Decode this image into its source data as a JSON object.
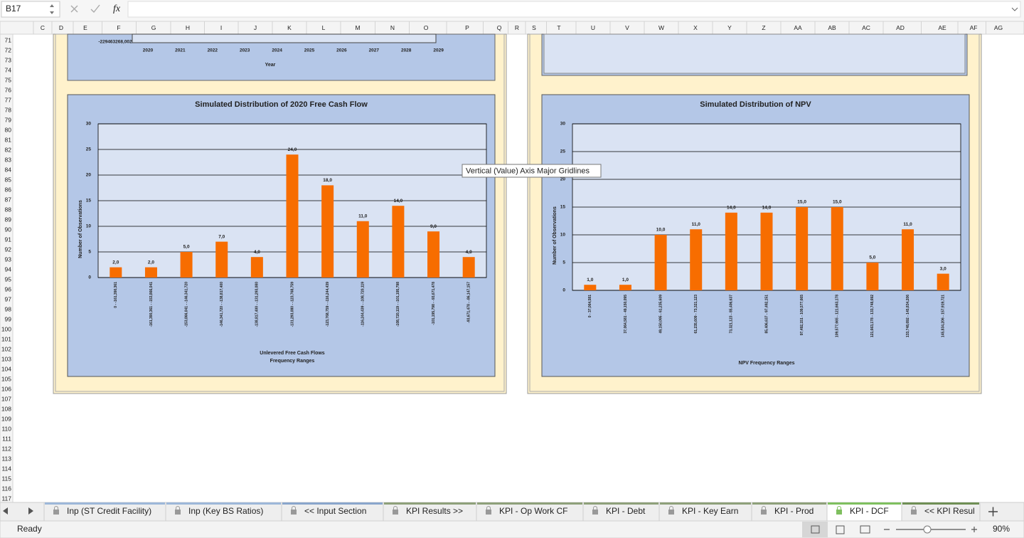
{
  "formula_bar": {
    "name_box": "B17",
    "function_button": "fx"
  },
  "column_headers": [
    "C",
    "D",
    "E",
    "F",
    "G",
    "H",
    "I",
    "J",
    "K",
    "L",
    "M",
    "N",
    "O",
    "P",
    "Q",
    "R",
    "S",
    "T",
    "U",
    "V",
    "W",
    "X",
    "Y",
    "Z",
    "AA",
    "AB",
    "AC",
    "AD",
    "AE",
    "AF",
    "AG"
  ],
  "row_numbers": [
    71,
    72,
    73,
    74,
    75,
    76,
    77,
    78,
    79,
    80,
    81,
    82,
    83,
    84,
    85,
    86,
    87,
    88,
    89,
    90,
    91,
    92,
    93,
    94,
    95,
    96,
    97,
    98,
    99,
    100,
    101,
    102,
    103,
    104,
    105,
    106,
    107,
    108,
    109,
    110,
    111,
    112,
    113,
    114,
    115,
    116,
    117
  ],
  "top_chart_fragment": {
    "axis_value_label": "-229463268,002",
    "categories": [
      "2020",
      "2021",
      "2022",
      "2023",
      "2024",
      "2025",
      "2026",
      "2027",
      "2028",
      "2029"
    ],
    "x_label": "Year"
  },
  "tooltip": "Vertical (Value) Axis Major Gridlines",
  "chart_data": [
    {
      "type": "bar",
      "title": "Simulated Distribution of 2020 Free Cash Flow",
      "y_label": "Number of Observations",
      "x_label": [
        "Unlevered Free Cash Flows",
        "Frequency Ranges"
      ],
      "categories": [
        "0 - -161,390,361",
        "-161,390,361 - -153,866,041",
        "-153,866,041 - -146,341,720",
        "-146,341,720 - -138,817,400",
        "-138,817,400 - -131,293,080",
        "-131,293,080 - -123,768,759",
        "-123,768,759 - -116,244,439",
        "-116,244,439 - -108,720,119",
        "-108,720,119 - -101,195,798",
        "-101,195,798 - -93,671,478",
        "-93,671,478 - -86,147,157"
      ],
      "values": [
        2,
        2,
        5,
        7,
        4,
        24,
        18,
        11,
        14,
        9,
        4
      ],
      "value_labels": [
        "2,0",
        "2,0",
        "5,0",
        "7,0",
        "4,0",
        "24,0",
        "18,0",
        "11,0",
        "14,0",
        "9,0",
        "4,0"
      ],
      "color": "#f76d00",
      "ylim": [
        0,
        30
      ],
      "yticks": [
        0,
        5,
        10,
        15,
        20,
        25,
        30
      ],
      "grid": true
    },
    {
      "type": "bar",
      "title": "Simulated Distribution of NPV",
      "y_label": "Number of Observations",
      "x_label": [
        "NPV Frequency Ranges"
      ],
      "categories": [
        "0 - 37,064,581",
        "37,064,581 - 49,150,095",
        "49,150,095 - 61,235,609",
        "61,235,609 - 73,321,123",
        "73,321,123 - 85,406,637",
        "85,406,637 - 97,492,151",
        "97,492,151 - 109,577,665",
        "109,577,665 - 121,663,178",
        "121,663,178 - 133,748,692",
        "133,748,692 - 145,834,206",
        "145,834,206 - 157,919,721"
      ],
      "values": [
        1,
        1,
        10,
        11,
        14,
        14,
        15,
        15,
        5,
        11,
        3
      ],
      "value_labels": [
        "1,0",
        "1,0",
        "10,0",
        "11,0",
        "14,0",
        "14,0",
        "15,0",
        "15,0",
        "5,0",
        "11,0",
        "3,0"
      ],
      "color": "#f76d00",
      "ylim": [
        0,
        30
      ],
      "yticks": [
        0,
        5,
        10,
        15,
        20,
        25,
        30
      ],
      "grid": true
    }
  ],
  "tabs": [
    "Inp (ST Credit Facility)",
    "Inp (Key BS Ratios)",
    "<< Input Section",
    "KPI Results >>",
    "KPI - Op Work CF",
    "KPI - Debt",
    "KPI - Key Earn",
    "KPI - Prod",
    "KPI - DCF",
    "<< KPI Resul"
  ],
  "active_tab": 8,
  "status": {
    "text": "Ready",
    "zoom": "90%"
  }
}
